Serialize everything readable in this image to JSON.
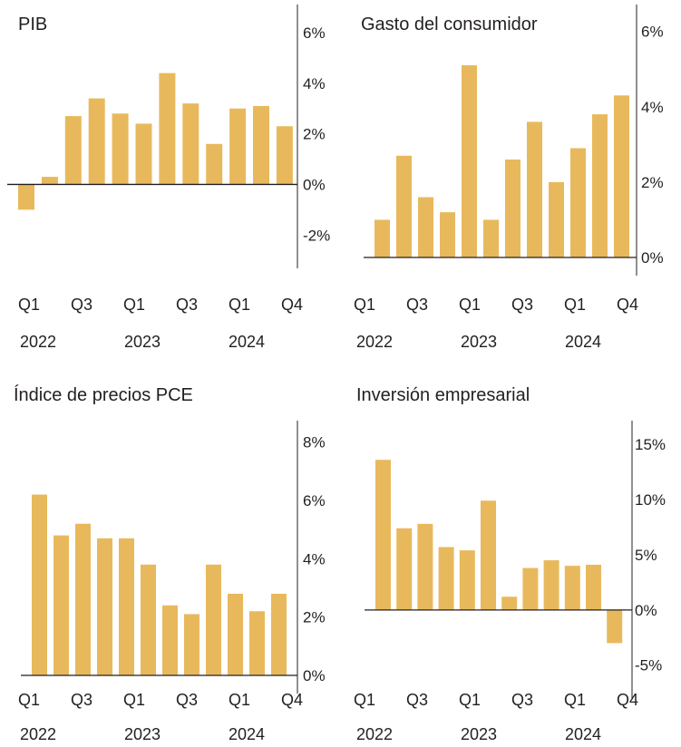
{
  "colors": {
    "bar": "#e8b95c",
    "axis": "#231f20",
    "text": "#231f20"
  },
  "chart_data": [
    {
      "type": "bar",
      "title": "PIB",
      "categories": [
        "Q1 2022",
        "Q2 2022",
        "Q3 2022",
        "Q4 2022",
        "Q1 2023",
        "Q2 2023",
        "Q3 2023",
        "Q4 2023",
        "Q1 2024",
        "Q2 2024",
        "Q3 2024",
        "Q4 2024"
      ],
      "values": [
        -1.0,
        0.3,
        2.7,
        3.4,
        2.8,
        2.4,
        4.4,
        3.2,
        1.6,
        3.0,
        3.1,
        2.3
      ],
      "ylim": [
        -2.6,
        6.5
      ],
      "yticks": [
        6,
        4,
        2,
        0,
        -2
      ],
      "ytick_labels": [
        "6%",
        "4%",
        "2%",
        "0%",
        "-2%"
      ],
      "xtick_labels": [
        "Q1",
        "Q3",
        "Q1",
        "Q3",
        "Q1",
        "Q4"
      ],
      "year_labels": [
        "2022",
        "2023",
        "2024"
      ]
    },
    {
      "type": "bar",
      "title": "Gasto del consumidor",
      "categories": [
        "Q1 2022",
        "Q2 2022",
        "Q3 2022",
        "Q4 2022",
        "Q1 2023",
        "Q2 2023",
        "Q3 2023",
        "Q4 2023",
        "Q1 2024",
        "Q2 2024",
        "Q3 2024",
        "Q4 2024"
      ],
      "values": [
        1.0,
        2.7,
        1.6,
        1.2,
        5.1,
        1.0,
        2.6,
        3.6,
        2.0,
        2.9,
        3.8,
        4.3
      ],
      "ylim": [
        0,
        6.4
      ],
      "yticks": [
        6,
        4,
        2,
        0
      ],
      "ytick_labels": [
        "6%",
        "4%",
        "2%",
        "0%"
      ],
      "xtick_labels": [
        "Q1",
        "Q3",
        "Q1",
        "Q3",
        "Q1",
        "Q4"
      ],
      "year_labels": [
        "2022",
        "2023",
        "2024"
      ]
    },
    {
      "type": "bar",
      "title": "Índice de precios PCE",
      "categories": [
        "Q1 2022",
        "Q2 2022",
        "Q3 2022",
        "Q4 2022",
        "Q1 2023",
        "Q2 2023",
        "Q3 2023",
        "Q4 2023",
        "Q1 2024",
        "Q2 2024",
        "Q3 2024",
        "Q4 2024"
      ],
      "values": [
        6.2,
        4.8,
        5.2,
        4.7,
        4.7,
        3.8,
        2.4,
        2.1,
        3.8,
        2.8,
        2.2,
        2.8
      ],
      "ylim": [
        0,
        8.3
      ],
      "yticks": [
        8,
        6,
        4,
        2,
        0
      ],
      "ytick_labels": [
        "8%",
        "6%",
        "4%",
        "2%",
        "0%"
      ],
      "xtick_labels": [
        "Q1",
        "Q3",
        "Q1",
        "Q3",
        "Q1",
        "Q4"
      ],
      "year_labels": [
        "2022",
        "2023",
        "2024"
      ]
    },
    {
      "type": "bar",
      "title": "Inversión empresarial",
      "categories": [
        "Q1 2022",
        "Q2 2022",
        "Q3 2022",
        "Q4 2022",
        "Q1 2023",
        "Q2 2023",
        "Q3 2023",
        "Q4 2023",
        "Q1 2024",
        "Q2 2024",
        "Q3 2024",
        "Q4 2024"
      ],
      "values": [
        13.6,
        7.4,
        7.8,
        5.7,
        5.4,
        9.9,
        1.2,
        3.8,
        4.5,
        4.0,
        4.1,
        -3.0
      ],
      "ylim": [
        -6.5,
        16
      ],
      "yticks": [
        15,
        10,
        5,
        0,
        -5
      ],
      "ytick_labels": [
        "15%",
        "10%",
        "5%",
        "0%",
        "-5%"
      ],
      "xtick_labels": [
        "Q1",
        "Q3",
        "Q1",
        "Q3",
        "Q1",
        "Q4"
      ],
      "year_labels": [
        "2022",
        "2023",
        "2024"
      ]
    }
  ]
}
